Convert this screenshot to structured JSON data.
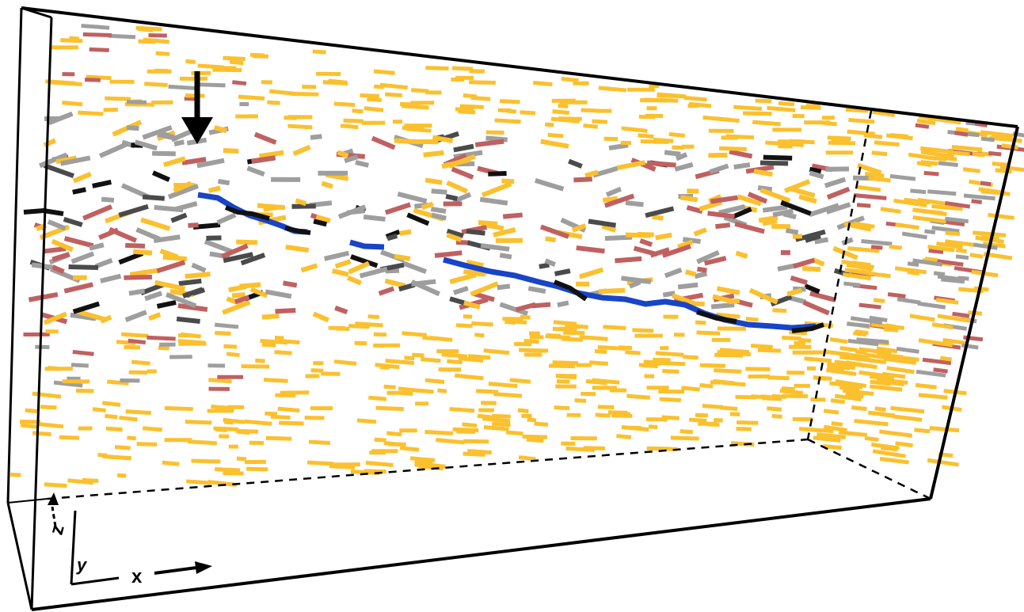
{
  "figure": {
    "axis_labels": {
      "z": "z",
      "y": "y",
      "x": "x"
    },
    "colors": {
      "background": "#ffffff",
      "frame": "#000000",
      "attribute_yellow": "#fbc02d",
      "attribute_gray": "#9e9e9e",
      "attribute_red": "#c06060",
      "attribute_dark": "#4a4a4a",
      "attribute_black": "#111111",
      "horizon": "#1844c8"
    },
    "annotation": "downward-arrow"
  }
}
